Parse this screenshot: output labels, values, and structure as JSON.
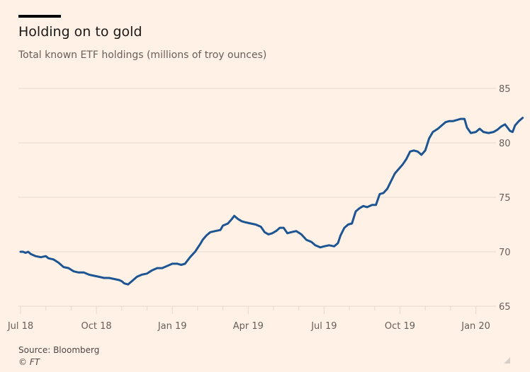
{
  "header": {
    "title": "Holding on to gold",
    "subtitle": "Total known ETF holdings (millions of troy ounces)"
  },
  "footer": {
    "source": "Source: Bloomberg",
    "copyright": "© FT"
  },
  "colors": {
    "background": "#fff1e5",
    "line": "#1d5593",
    "grid": "#e6d9ce",
    "text": "#66605c"
  },
  "chart_data": {
    "type": "line",
    "title": "Holding on to gold",
    "subtitle": "Total known ETF holdings (millions of troy ounces)",
    "xlabel": "",
    "ylabel": "",
    "ylim": [
      65,
      85
    ],
    "yticks": [
      65,
      70,
      75,
      80,
      85
    ],
    "y_axis_position": "right",
    "grid": true,
    "x_unit": "months since Jul 2018",
    "xlim": [
      0,
      19.3
    ],
    "xticks": [
      {
        "x": 0,
        "label": "Jul 18"
      },
      {
        "x": 3,
        "label": "Oct 18"
      },
      {
        "x": 6,
        "label": "Jan 19"
      },
      {
        "x": 9,
        "label": "Apr 19"
      },
      {
        "x": 12,
        "label": "Jul 19"
      },
      {
        "x": 15,
        "label": "Oct 19"
      },
      {
        "x": 18,
        "label": "Jan 20"
      }
    ],
    "minor_xticks": [
      1,
      2,
      4,
      5,
      7,
      8,
      10,
      11,
      13,
      14,
      16,
      17
    ],
    "series": [
      {
        "name": "Total known ETF holdings",
        "points": [
          [
            0.0,
            70.0
          ],
          [
            0.1,
            70.0
          ],
          [
            0.2,
            69.9
          ],
          [
            0.3,
            70.0
          ],
          [
            0.4,
            69.8
          ],
          [
            0.6,
            69.6
          ],
          [
            0.8,
            69.5
          ],
          [
            1.0,
            69.6
          ],
          [
            1.1,
            69.4
          ],
          [
            1.3,
            69.3
          ],
          [
            1.5,
            69.0
          ],
          [
            1.7,
            68.6
          ],
          [
            1.9,
            68.5
          ],
          [
            2.1,
            68.2
          ],
          [
            2.3,
            68.1
          ],
          [
            2.5,
            68.1
          ],
          [
            2.7,
            67.9
          ],
          [
            2.9,
            67.8
          ],
          [
            3.1,
            67.7
          ],
          [
            3.3,
            67.6
          ],
          [
            3.5,
            67.6
          ],
          [
            3.7,
            67.5
          ],
          [
            3.9,
            67.4
          ],
          [
            4.0,
            67.3
          ],
          [
            4.1,
            67.1
          ],
          [
            4.25,
            67.0
          ],
          [
            4.4,
            67.3
          ],
          [
            4.6,
            67.7
          ],
          [
            4.8,
            67.9
          ],
          [
            5.0,
            68.0
          ],
          [
            5.2,
            68.3
          ],
          [
            5.4,
            68.5
          ],
          [
            5.6,
            68.5
          ],
          [
            5.8,
            68.7
          ],
          [
            6.0,
            68.9
          ],
          [
            6.2,
            68.9
          ],
          [
            6.35,
            68.8
          ],
          [
            6.5,
            68.9
          ],
          [
            6.7,
            69.5
          ],
          [
            6.9,
            70.0
          ],
          [
            7.1,
            70.7
          ],
          [
            7.2,
            71.1
          ],
          [
            7.35,
            71.5
          ],
          [
            7.5,
            71.8
          ],
          [
            7.7,
            71.9
          ],
          [
            7.9,
            72.0
          ],
          [
            8.0,
            72.4
          ],
          [
            8.2,
            72.6
          ],
          [
            8.35,
            73.0
          ],
          [
            8.45,
            73.3
          ],
          [
            8.6,
            73.0
          ],
          [
            8.75,
            72.8
          ],
          [
            8.9,
            72.7
          ],
          [
            9.1,
            72.6
          ],
          [
            9.3,
            72.5
          ],
          [
            9.5,
            72.3
          ],
          [
            9.65,
            71.8
          ],
          [
            9.8,
            71.6
          ],
          [
            9.95,
            71.7
          ],
          [
            10.1,
            71.9
          ],
          [
            10.25,
            72.2
          ],
          [
            10.4,
            72.2
          ],
          [
            10.55,
            71.7
          ],
          [
            10.7,
            71.8
          ],
          [
            10.9,
            71.9
          ],
          [
            11.1,
            71.6
          ],
          [
            11.3,
            71.1
          ],
          [
            11.5,
            70.9
          ],
          [
            11.65,
            70.6
          ],
          [
            11.85,
            70.4
          ],
          [
            12.0,
            70.5
          ],
          [
            12.2,
            70.6
          ],
          [
            12.4,
            70.5
          ],
          [
            12.55,
            70.8
          ],
          [
            12.65,
            71.5
          ],
          [
            12.8,
            72.2
          ],
          [
            12.95,
            72.5
          ],
          [
            13.1,
            72.6
          ],
          [
            13.25,
            73.7
          ],
          [
            13.4,
            74.0
          ],
          [
            13.55,
            74.2
          ],
          [
            13.7,
            74.1
          ],
          [
            13.9,
            74.3
          ],
          [
            14.05,
            74.3
          ],
          [
            14.2,
            75.3
          ],
          [
            14.35,
            75.4
          ],
          [
            14.5,
            75.8
          ],
          [
            14.65,
            76.5
          ],
          [
            14.8,
            77.2
          ],
          [
            14.95,
            77.6
          ],
          [
            15.1,
            78.0
          ],
          [
            15.25,
            78.5
          ],
          [
            15.4,
            79.2
          ],
          [
            15.55,
            79.3
          ],
          [
            15.7,
            79.2
          ],
          [
            15.85,
            78.9
          ],
          [
            16.0,
            79.3
          ],
          [
            16.15,
            80.4
          ],
          [
            16.3,
            81.0
          ],
          [
            16.5,
            81.3
          ],
          [
            16.65,
            81.6
          ],
          [
            16.8,
            81.9
          ],
          [
            16.95,
            82.0
          ],
          [
            17.1,
            82.0
          ],
          [
            17.25,
            82.1
          ],
          [
            17.4,
            82.2
          ],
          [
            17.55,
            82.2
          ],
          [
            17.65,
            81.4
          ],
          [
            17.8,
            80.9
          ],
          [
            18.0,
            81.0
          ],
          [
            18.15,
            81.3
          ],
          [
            18.3,
            81.0
          ],
          [
            18.5,
            80.9
          ],
          [
            18.7,
            81.0
          ],
          [
            18.85,
            81.2
          ],
          [
            19.0,
            81.5
          ],
          [
            19.15,
            81.7
          ],
          [
            19.25,
            81.4
          ],
          [
            19.35,
            81.1
          ],
          [
            19.45,
            81.0
          ],
          [
            19.55,
            81.6
          ],
          [
            19.7,
            82.0
          ],
          [
            19.85,
            82.3
          ]
        ]
      }
    ]
  }
}
